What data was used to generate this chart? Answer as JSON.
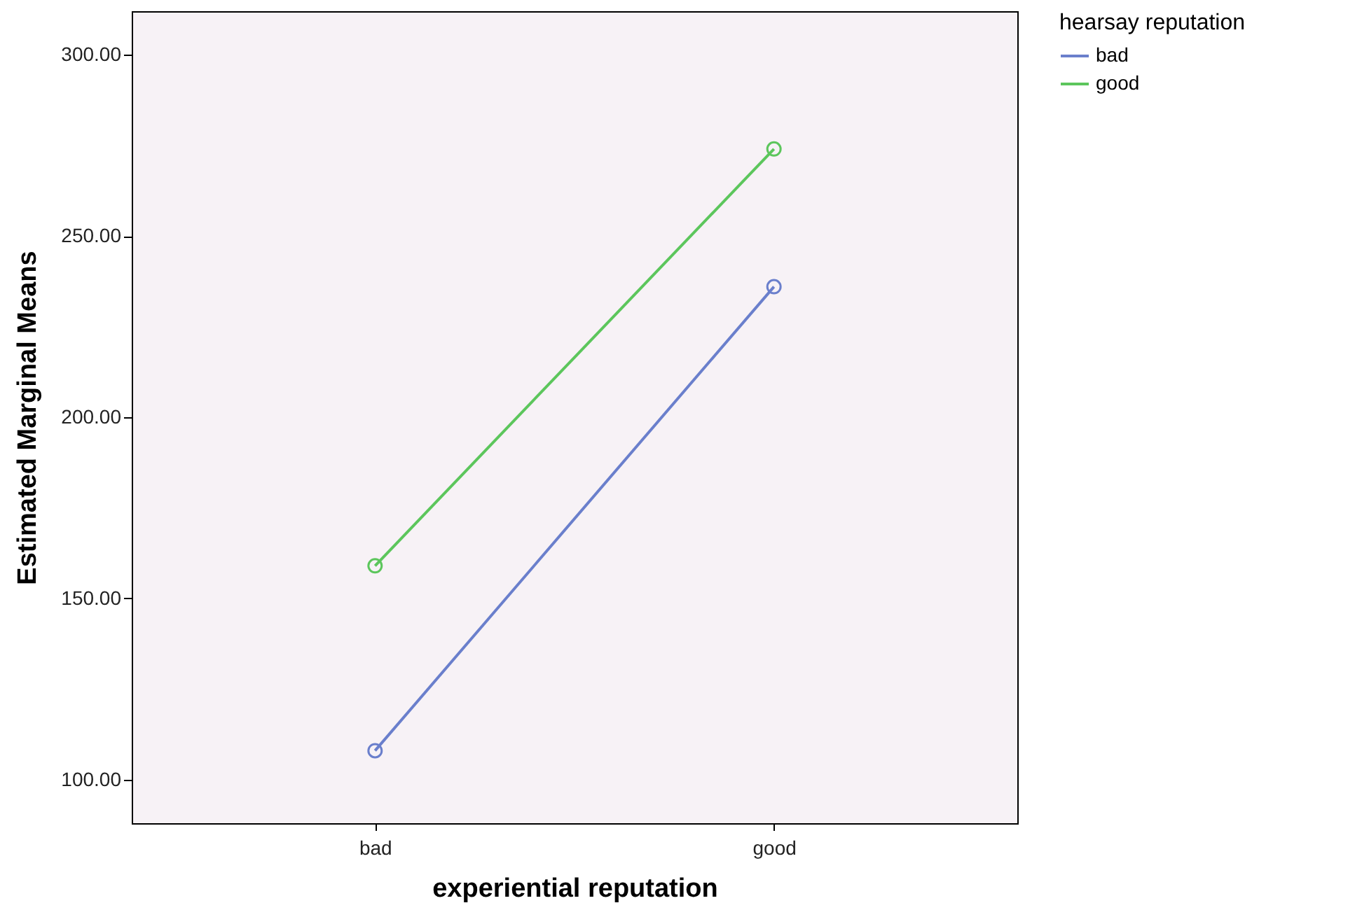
{
  "chart_data": {
    "type": "line",
    "xlabel": "experiential reputation",
    "ylabel": "Estimated Marginal Means",
    "legend_title": "hearsay reputation",
    "categories": [
      "bad",
      "good"
    ],
    "series": [
      {
        "name": "bad",
        "color": "#6a7fcc",
        "values": [
          108,
          236
        ]
      },
      {
        "name": "good",
        "color": "#5cc65c",
        "values": [
          159,
          274
        ]
      }
    ],
    "ylim": [
      88,
      312
    ],
    "yticks": [
      {
        "value": 100,
        "label": "100.00"
      },
      {
        "value": 150,
        "label": "150.00"
      },
      {
        "value": 200,
        "label": "200.00"
      },
      {
        "value": 250,
        "label": "250.00"
      },
      {
        "value": 300,
        "label": "300.00"
      }
    ],
    "grid": false,
    "legend": "top right",
    "marker": "circle",
    "line_style": "solid"
  }
}
